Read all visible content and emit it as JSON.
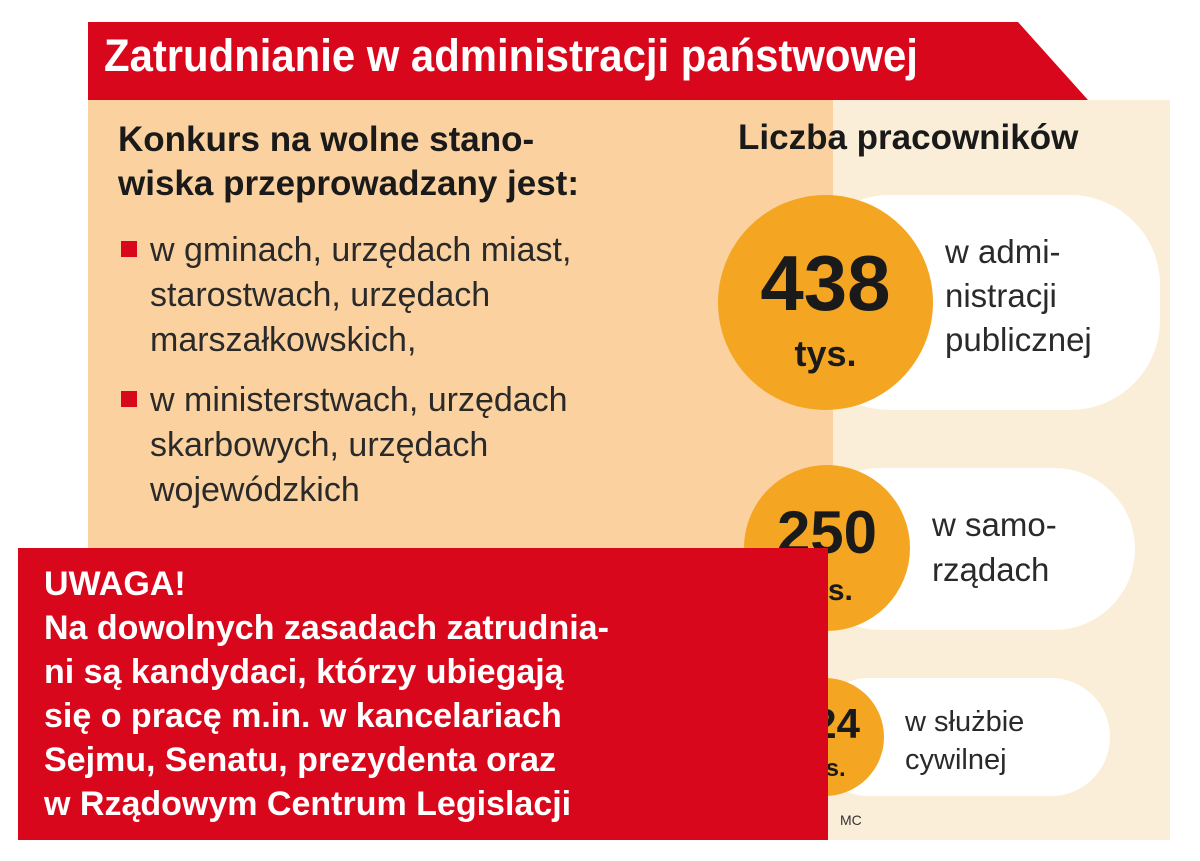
{
  "title": "Zatrudnianie w administracji państwowej",
  "left": {
    "heading_lines": [
      "Konkurs na wolne stano-",
      "wiska przeprowadzany jest:"
    ],
    "bullets": [
      {
        "lines": [
          "w gminach, urzędach miast,",
          "starostwach, urzędach",
          "marszałkowskich,"
        ]
      },
      {
        "lines": [
          "w ministerstwach, urzędach",
          "skarbowych, urzędach",
          "wojewódzkich"
        ]
      }
    ]
  },
  "right": {
    "heading": "Liczba pracowników",
    "items": [
      {
        "number": "438",
        "unit": "tys.",
        "desc_lines": [
          "w admi-",
          "nistracji",
          "publicznej"
        ]
      },
      {
        "number": "250",
        "unit": "tys.",
        "desc_lines": [
          "w samo-",
          "rządach"
        ]
      },
      {
        "number": "124",
        "unit": "tys.",
        "desc_lines": [
          "w służbie",
          "cywilnej"
        ]
      }
    ]
  },
  "warning": {
    "lines": [
      "UWAGA!",
      "Na dowolnych zasadach zatrudnia-",
      "ni są kandydaci, którzy ubiegają",
      "się o pracę m.in. w kancelariach",
      "Sejmu, Senatu, prezydenta oraz",
      "w Rządowym Centrum Legislacji"
    ]
  },
  "credit": "MC",
  "colors": {
    "red": "#d9071c",
    "orange_panel": "#fbd29f",
    "beige_panel": "#fbeed8",
    "circle": "#f4a521"
  }
}
